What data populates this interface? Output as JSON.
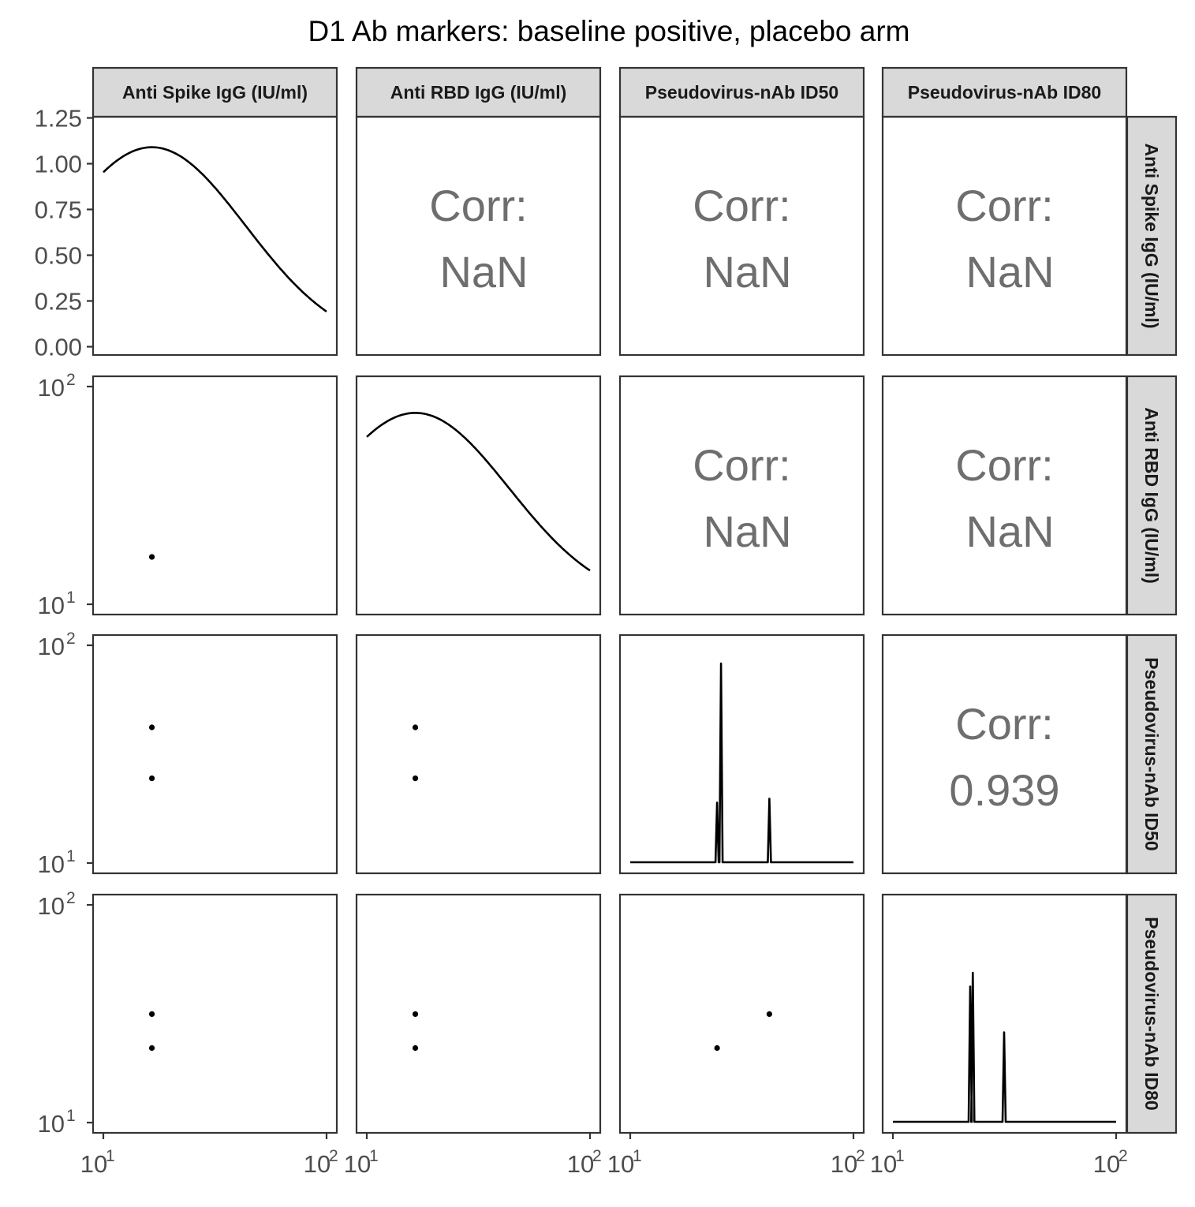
{
  "chart_data": {
    "type": "scatter",
    "title": "D1 Ab markers: baseline positive, placebo arm",
    "markers": [
      "Anti Spike IgG (IU/ml)",
      "Anti RBD IgG (IU/ml)",
      "Pseudovirus-nAb ID50",
      "Pseudovirus-nAb ID80"
    ],
    "x_axis": {
      "scale": "log10",
      "range": [
        10,
        100
      ],
      "tick_base": "10",
      "tick_exponents": [
        "1",
        "2"
      ]
    },
    "y_axis_density": {
      "range": [
        0,
        1.25
      ],
      "ticks": [
        "0.00",
        "0.25",
        "0.50",
        "0.75",
        "1.00",
        "1.25"
      ]
    },
    "y_axis_log": {
      "scale": "log10",
      "range": [
        10,
        100
      ],
      "tick_base": "10",
      "tick_exponents": [
        "1",
        "2"
      ]
    },
    "diagonal_density": [
      {
        "marker": "Anti Spike IgG (IU/ml)",
        "kind": "smooth",
        "peak_x": 16.5,
        "peak_y": 1.09,
        "x_range": [
          10,
          100
        ],
        "y_start": 0.9,
        "y_end": 0.12
      },
      {
        "marker": "Anti RBD IgG (IU/ml)",
        "kind": "smooth",
        "peak_x": 16.5,
        "peak_y": 1.09,
        "x_range": [
          10,
          100
        ],
        "y_start": 0.9,
        "y_end": 0.12
      },
      {
        "marker": "Pseudovirus-nAb ID50",
        "kind": "spikes",
        "spikes": [
          {
            "x": 24.5,
            "height": 0.3
          },
          {
            "x": 25.5,
            "height": 1.0
          },
          {
            "x": 42,
            "height": 0.32
          }
        ]
      },
      {
        "marker": "Pseudovirus-nAb ID80",
        "kind": "spikes",
        "spikes": [
          {
            "x": 22.2,
            "height": 0.68
          },
          {
            "x": 22.8,
            "height": 0.75
          },
          {
            "x": 31.5,
            "height": 0.45
          }
        ]
      }
    ],
    "scatter_points": {
      "anti_spike": [
        16.5,
        16.5
      ],
      "anti_rbd": [
        16.5,
        16.5
      ],
      "id50": [
        24.5,
        42
      ],
      "id80": [
        22,
        31.5
      ],
      "single_rbd_point": {
        "x": 16.5,
        "y": 16.5
      }
    },
    "correlations": [
      {
        "row": 0,
        "col": 1,
        "label": "Corr:",
        "value": "NaN"
      },
      {
        "row": 0,
        "col": 2,
        "label": "Corr:",
        "value": "NaN"
      },
      {
        "row": 0,
        "col": 3,
        "label": "Corr:",
        "value": "NaN"
      },
      {
        "row": 1,
        "col": 2,
        "label": "Corr:",
        "value": "NaN"
      },
      {
        "row": 1,
        "col": 3,
        "label": "Corr:",
        "value": "NaN"
      },
      {
        "row": 2,
        "col": 3,
        "label": "Corr:",
        "value": "0.939"
      }
    ],
    "scatter_panels": [
      {
        "row": 1,
        "col": 0,
        "points": [
          {
            "x": 16.5,
            "y": 16.5
          }
        ]
      },
      {
        "row": 2,
        "col": 0,
        "points": [
          {
            "x": 16.5,
            "y": 42
          },
          {
            "x": 16.5,
            "y": 24.5
          }
        ]
      },
      {
        "row": 2,
        "col": 1,
        "points": [
          {
            "x": 16.5,
            "y": 42
          },
          {
            "x": 16.5,
            "y": 24.5
          }
        ]
      },
      {
        "row": 3,
        "col": 0,
        "points": [
          {
            "x": 16.5,
            "y": 31.5
          },
          {
            "x": 16.5,
            "y": 22
          }
        ]
      },
      {
        "row": 3,
        "col": 1,
        "points": [
          {
            "x": 16.5,
            "y": 31.5
          },
          {
            "x": 16.5,
            "y": 22
          }
        ]
      },
      {
        "row": 3,
        "col": 2,
        "points": [
          {
            "x": 42,
            "y": 31.5
          },
          {
            "x": 24.5,
            "y": 22
          }
        ]
      }
    ],
    "grid": false,
    "legend": "none"
  }
}
